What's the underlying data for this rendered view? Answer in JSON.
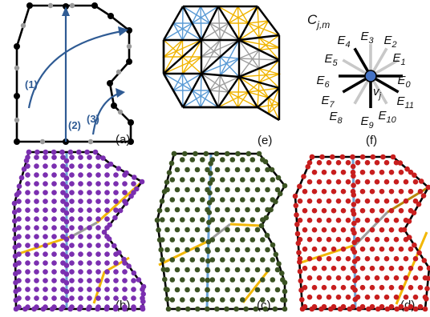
{
  "panels": {
    "a": {
      "label": "(a)",
      "paths": [
        {
          "label": "(1)"
        },
        {
          "label": "(2)"
        },
        {
          "label": "(3)"
        }
      ]
    },
    "b": {
      "label": "(b)"
    },
    "c": {
      "label": "(c)"
    },
    "d": {
      "label": "(d)"
    },
    "e": {
      "label": "(e)"
    },
    "f": {
      "label": "(f)",
      "title": "C",
      "title_sub": "j,m",
      "center_label": "v",
      "center_sub": "j",
      "directions": [
        {
          "name": "E",
          "sub": "0"
        },
        {
          "name": "E",
          "sub": "1"
        },
        {
          "name": "E",
          "sub": "2"
        },
        {
          "name": "E",
          "sub": "3"
        },
        {
          "name": "E",
          "sub": "4"
        },
        {
          "name": "E",
          "sub": "5"
        },
        {
          "name": "E",
          "sub": "6"
        },
        {
          "name": "E",
          "sub": "7"
        },
        {
          "name": "E",
          "sub": "8"
        },
        {
          "name": "E",
          "sub": "9"
        },
        {
          "name": "E",
          "sub": "10"
        },
        {
          "name": "E",
          "sub": "11"
        }
      ]
    }
  },
  "colors": {
    "boundary": "#000000",
    "seam": "#6aa3d5",
    "arrow": "#2f5b94",
    "boundary_dot": "#9a9a9a",
    "yellow_line": "#f2b705",
    "brown_line": "#b8860b",
    "grey_line": "#9c9c9c",
    "purple_dot": "#7b2fb0",
    "green_dot": "#3b5323",
    "red_dot": "#c81e1e",
    "star_blue": "#5b9bd5",
    "star_gold": "#f0b400",
    "star_grey": "#9e9e9e",
    "center_dot": "#4472c4"
  }
}
